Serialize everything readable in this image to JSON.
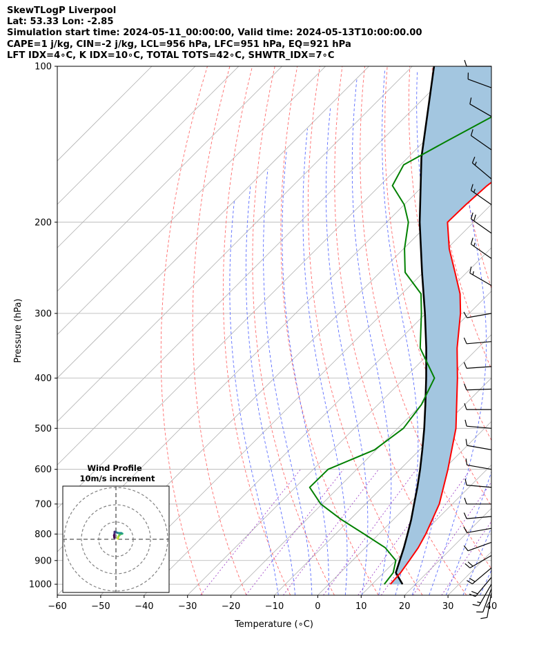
{
  "header": {
    "line1": "SkewTLogP Liverpool",
    "line2": "Lat: 53.33   Lon: -2.85",
    "line3": "Simulation start time: 2024-05-11_00:00:00, Valid time: 2024-05-13T10:00:00.00",
    "line4": "CAPE=1 j/kg, CIN=-2 j/kg, LCL=956 hPa, LFC=951 hPa, EQ=921 hPa",
    "line5": "LFT IDX=4∘C, K IDX=10∘C, TOTAL TOTS=42∘C, SHWTR_IDX=7∘C"
  },
  "chart_data": {
    "type": "skewt",
    "xlabel": "Temperature (∘C)",
    "ylabel": "Pressure (hPa)",
    "xlim": [
      -60,
      40
    ],
    "ylim": [
      1050,
      100
    ],
    "x_ticks": [
      -60,
      -50,
      -40,
      -30,
      -20,
      -10,
      0,
      10,
      20,
      30,
      40
    ],
    "x_tick_labels": [
      "−60",
      "−50",
      "−40",
      "−30",
      "−20",
      "−10",
      "0",
      "10",
      "20",
      "30",
      "40"
    ],
    "y_ticks": [
      1000,
      900,
      800,
      700,
      600,
      500,
      400,
      300,
      200,
      100
    ],
    "y_tick_labels": [
      "1000",
      "900",
      "800",
      "700",
      "600",
      "500",
      "400",
      "300",
      "200",
      "100"
    ],
    "temperature": {
      "name": "Temperature",
      "color": "#ff0000",
      "pressure": [
        1000,
        950,
        900,
        850,
        800,
        700,
        600,
        500,
        400,
        350,
        300,
        275,
        250,
        225,
        200,
        185,
        170,
        155,
        145,
        135,
        125,
        118,
        110,
        100
      ],
      "temp": [
        14.2,
        13.9,
        13.1,
        12.2,
        10.8,
        7.0,
        1.0,
        -6.6,
        -17.8,
        -24.8,
        -32.0,
        -36.6,
        -42.7,
        -49.5,
        -56.0,
        -55.8,
        -55.3,
        -53.8,
        -52.4,
        -50.1,
        -48.6,
        -47.3,
        -46.1,
        -46.8
      ]
    },
    "dewpoint": {
      "name": "Dewpoint",
      "color": "#008000",
      "pressure": [
        1000,
        950,
        900,
        850,
        800,
        750,
        700,
        650,
        600,
        550,
        500,
        450,
        400,
        350,
        300,
        275,
        250,
        225,
        200,
        185,
        170,
        155,
        140,
        125,
        100
      ],
      "temp": [
        12.8,
        12.2,
        10.0,
        4.6,
        -3.4,
        -12.0,
        -20.3,
        -26.7,
        -26.6,
        -20.4,
        -18.7,
        -20.0,
        -23.1,
        -33.3,
        -41.0,
        -45.6,
        -54.2,
        -59.8,
        -65.0,
        -70.0,
        -77.1,
        -79.3,
        -75.0,
        -70.0,
        -60.0
      ]
    },
    "parcel": {
      "name": "Parcel path",
      "color": "#000000",
      "pressure": [
        1000,
        950,
        900,
        850,
        800,
        750,
        700,
        650,
        600,
        550,
        500,
        450,
        400,
        350,
        300,
        250,
        200,
        150,
        100
      ],
      "temp": [
        17.0,
        12.8,
        10.9,
        8.9,
        6.6,
        4.1,
        1.2,
        -1.9,
        -5.4,
        -9.4,
        -13.9,
        -19.1,
        -25.0,
        -31.9,
        -40.2,
        -50.3,
        -62.4,
        -76.9,
        -95.0
      ]
    },
    "cape_fill_color": "#a3c6e0",
    "wind_barbs": {
      "pressure": [
        1040,
        1020,
        1000,
        970,
        930,
        880,
        830,
        780,
        740,
        700,
        650,
        600,
        550,
        500,
        460,
        420,
        380,
        340,
        300,
        265,
        235,
        210,
        185,
        165,
        145,
        125,
        110,
        100
      ],
      "speed_kt": [
        10,
        12,
        15,
        20,
        22,
        18,
        12,
        10,
        10,
        10,
        10,
        10,
        10,
        10,
        10,
        10,
        10,
        10,
        10,
        15,
        15,
        18,
        15,
        15,
        12,
        10,
        10,
        10
      ],
      "direction_deg": [
        190,
        200,
        210,
        220,
        230,
        240,
        250,
        260,
        265,
        270,
        275,
        280,
        280,
        275,
        270,
        268,
        266,
        265,
        260,
        300,
        305,
        305,
        305,
        310,
        305,
        300,
        290,
        270
      ]
    },
    "hodograph": {
      "title": "Wind Profile",
      "subtitle": "10m/s increment",
      "rings_ms": [
        10,
        20,
        30
      ],
      "u_ms": [
        2.5,
        2.8,
        3.3,
        4.8,
        6.8,
        8.8,
        7.2,
        4.0,
        1.5,
        -0.2,
        -1.2,
        -1.8,
        -2.0,
        -2.6,
        -2.4,
        -2.2
      ],
      "v_ms": [
        1.0,
        2.0,
        3.6,
        5.8,
        7.2,
        7.8,
        8.6,
        8.6,
        9.0,
        10.2,
        9.4,
        10.4,
        7.4,
        5.5,
        3.5,
        2.0
      ]
    }
  }
}
